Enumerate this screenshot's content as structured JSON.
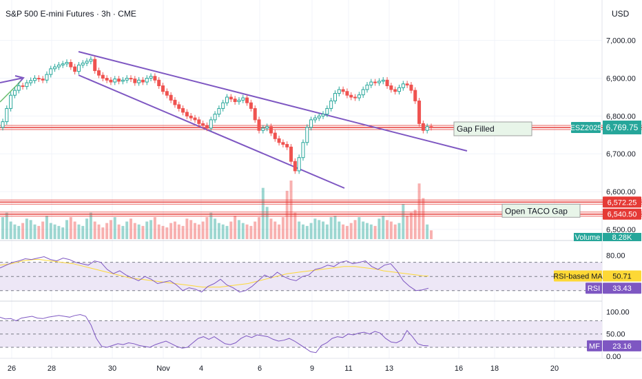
{
  "header": {
    "title": "S&P 500 E-mini Futures · 3h · CME",
    "currency": "USD"
  },
  "colors": {
    "up": "#26a69a",
    "down": "#ef5350",
    "channel": "#7e57c2",
    "level": "#e53935",
    "rsi_ma": "#fdd835",
    "panel_bg": "#ede7f6"
  },
  "chart_data": [
    {
      "type": "candlestick",
      "title": "S&P 500 E-mini Futures · 3h · CME",
      "x_ticks": [
        "26",
        "28",
        "30",
        "Nov",
        "4",
        "6",
        "9",
        "11",
        "13",
        "16",
        "18",
        "20"
      ],
      "y_ticks": [
        {
          "value": 7000,
          "label": "7,000.00"
        },
        {
          "value": 6900,
          "label": "6,900.00"
        },
        {
          "value": 6800,
          "label": "6,800.00"
        },
        {
          "value": 6700,
          "label": "6,700.00"
        },
        {
          "value": 6600,
          "label": "6,600.00"
        },
        {
          "value": 6500,
          "label": "6,500.00"
        }
      ],
      "ylim": [
        6478,
        7045
      ],
      "last_price": 6769.75,
      "symbol_badge": "ESZ2025",
      "horizontal_levels": [
        {
          "value": 6769.75,
          "label": "Gap Filled"
        },
        {
          "value": 6572.25,
          "label": "Open TACO Gap",
          "price_label": "6,572.25"
        },
        {
          "value": 6540.5,
          "label": "",
          "price_label": "6,540.50"
        }
      ],
      "closes": [
        6785,
        6820,
        6855,
        6868,
        6880,
        6878,
        6888,
        6894,
        6900,
        6898,
        6895,
        6910,
        6925,
        6930,
        6935,
        6938,
        6942,
        6930,
        6918,
        6935,
        6940,
        6945,
        6950,
        6920,
        6908,
        6900,
        6895,
        6890,
        6898,
        6892,
        6895,
        6900,
        6898,
        6888,
        6895,
        6890,
        6900,
        6905,
        6895,
        6880,
        6865,
        6855,
        6842,
        6830,
        6820,
        6810,
        6800,
        6795,
        6790,
        6780,
        6775,
        6768,
        6790,
        6805,
        6820,
        6835,
        6850,
        6845,
        6838,
        6842,
        6848,
        6835,
        6820,
        6790,
        6762,
        6768,
        6772,
        6755,
        6740,
        6730,
        6725,
        6718,
        6680,
        6655,
        6690,
        6730,
        6770,
        6790,
        6795,
        6800,
        6805,
        6820,
        6840,
        6860,
        6870,
        6865,
        6855,
        6850,
        6848,
        6856,
        6870,
        6882,
        6890,
        6888,
        6892,
        6895,
        6880,
        6870,
        6865,
        6875,
        6885,
        6882,
        6868,
        6840,
        6780,
        6762,
        6772,
        6769.75
      ],
      "volumes": [
        15,
        18,
        12,
        10,
        9,
        11,
        14,
        13,
        10,
        9,
        12,
        16,
        11,
        10,
        9,
        8,
        13,
        15,
        12,
        10,
        9,
        14,
        18,
        12,
        10,
        8,
        11,
        13,
        15,
        10,
        9,
        12,
        14,
        11,
        10,
        9,
        12,
        13,
        15,
        10,
        9,
        8,
        11,
        12,
        10,
        9,
        14,
        13,
        11,
        10,
        12,
        15,
        18,
        14,
        11,
        10,
        9,
        12,
        16,
        13,
        11,
        10,
        9,
        12,
        15,
        35,
        22,
        14,
        12,
        10,
        15,
        33,
        40,
        18,
        12,
        10,
        9,
        11,
        14,
        13,
        12,
        10,
        15,
        16,
        12,
        10,
        9,
        11,
        13,
        15,
        12,
        11,
        10,
        9,
        14,
        16,
        13,
        12,
        10,
        11,
        24,
        16,
        18,
        20,
        38,
        28,
        10,
        6
      ],
      "volume_label": "Volume",
      "volume_value": "8.28K"
    },
    {
      "type": "line",
      "title": "RSI",
      "y_ticks": [
        {
          "value": 80,
          "label": "80.00"
        }
      ],
      "ylim": [
        20,
        95
      ],
      "reference_lines": [
        70,
        50,
        30
      ],
      "series": [
        {
          "name": "RSI-based MA",
          "last_value": 50.71,
          "values": [
            66,
            67,
            68,
            70,
            72,
            73,
            74,
            74,
            73,
            72,
            71,
            70,
            69,
            68,
            66,
            64,
            62,
            60,
            58,
            56,
            54,
            52,
            50,
            48,
            47,
            46,
            45,
            44,
            43,
            42,
            41,
            40,
            39,
            38,
            37,
            36,
            35,
            35,
            35,
            35,
            36,
            37,
            38,
            39,
            40,
            42,
            44,
            46,
            48,
            50,
            52,
            54,
            55,
            56,
            57,
            58,
            59,
            60,
            61,
            62,
            63,
            64,
            64,
            64,
            63,
            62,
            61,
            60,
            58,
            57,
            56,
            55,
            54,
            53,
            52,
            51,
            50.71
          ]
        },
        {
          "name": "RSI",
          "last_value": 33.43,
          "values": [
            62,
            66,
            70,
            72,
            75,
            74,
            76,
            78,
            74,
            72,
            76,
            74,
            70,
            68,
            66,
            72,
            70,
            60,
            54,
            58,
            52,
            48,
            44,
            50,
            46,
            40,
            42,
            44,
            38,
            30,
            34,
            32,
            28,
            36,
            40,
            46,
            38,
            34,
            28,
            30,
            36,
            44,
            52,
            48,
            56,
            50,
            46,
            44,
            50,
            52,
            60,
            62,
            66,
            64,
            70,
            72,
            68,
            70,
            72,
            64,
            60,
            66,
            68,
            58,
            44,
            36,
            30,
            31,
            33.43
          ]
        }
      ],
      "ma_label": "RSI-based MA",
      "ma_value": "50.71",
      "rsi_label": "RSI",
      "rsi_value": "33.43"
    },
    {
      "type": "line",
      "title": "MF",
      "y_ticks": [
        {
          "value": 100,
          "label": "100.00"
        },
        {
          "value": 50,
          "label": "50.00"
        },
        {
          "value": 0,
          "label": "0.00"
        }
      ],
      "ylim": [
        -5,
        115
      ],
      "reference_lines": [
        80,
        50,
        20
      ],
      "series": [
        {
          "name": "MF",
          "last_value": 23.16,
          "values": [
            88,
            84,
            85,
            80,
            86,
            88,
            90,
            86,
            85,
            88,
            90,
            92,
            90,
            88,
            92,
            94,
            90,
            70,
            40,
            22,
            20,
            24,
            28,
            26,
            30,
            28,
            24,
            22,
            20,
            26,
            30,
            34,
            28,
            22,
            18,
            20,
            30,
            40,
            44,
            38,
            44,
            36,
            28,
            26,
            30,
            40,
            46,
            42,
            48,
            46,
            44,
            38,
            34,
            36,
            40,
            34,
            26,
            18,
            10,
            8,
            24,
            30,
            40,
            44,
            42,
            50,
            48,
            52,
            54,
            50,
            56,
            52,
            40,
            32,
            30,
            36,
            58,
            44,
            28,
            24,
            23.16
          ]
        }
      ],
      "mf_label": "MF",
      "mf_value": "23.16"
    }
  ]
}
